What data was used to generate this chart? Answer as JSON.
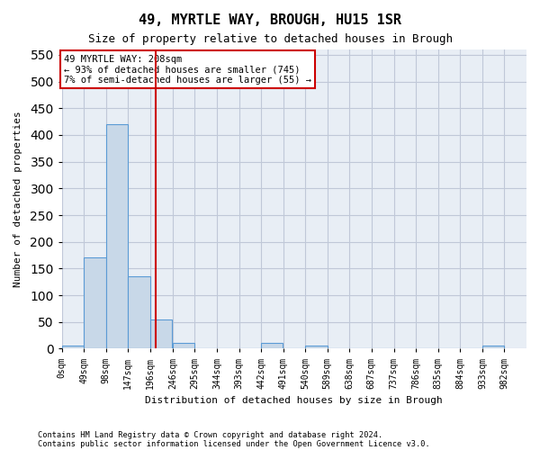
{
  "title": "49, MYRTLE WAY, BROUGH, HU15 1SR",
  "subtitle": "Size of property relative to detached houses in Brough",
  "xlabel": "Distribution of detached houses by size in Brough",
  "ylabel": "Number of detached properties",
  "footnote1": "Contains HM Land Registry data © Crown copyright and database right 2024.",
  "footnote2": "Contains public sector information licensed under the Open Government Licence v3.0.",
  "annotation_line1": "49 MYRTLE WAY: 208sqm",
  "annotation_line2": "← 93% of detached houses are smaller (745)",
  "annotation_line3": "7% of semi-detached houses are larger (55) →",
  "property_size": 208,
  "bin_edges": [
    0,
    49,
    98,
    147,
    196,
    246,
    295,
    344,
    393,
    442,
    491,
    540,
    589,
    638,
    687,
    737,
    786,
    835,
    884,
    933,
    982
  ],
  "bar_heights": [
    5,
    170,
    420,
    135,
    55,
    10,
    0,
    0,
    0,
    10,
    0,
    5,
    0,
    0,
    0,
    0,
    0,
    0,
    0,
    5
  ],
  "bar_color": "#c8d8e8",
  "bar_edge_color": "#5b9bd5",
  "red_line_color": "#cc0000",
  "annotation_box_color": "#cc0000",
  "grid_color": "#c0c8d8",
  "background_color": "#e8eef5",
  "ylim": [
    0,
    560
  ],
  "yticks": [
    0,
    50,
    100,
    150,
    200,
    250,
    300,
    350,
    400,
    450,
    500,
    550
  ],
  "tick_labels": [
    "0sqm",
    "49sqm",
    "98sqm",
    "147sqm",
    "196sqm",
    "246sqm",
    "295sqm",
    "344sqm",
    "393sqm",
    "442sqm",
    "491sqm",
    "540sqm",
    "589sqm",
    "638sqm",
    "687sqm",
    "737sqm",
    "786sqm",
    "835sqm",
    "884sqm",
    "933sqm",
    "982sqm"
  ]
}
